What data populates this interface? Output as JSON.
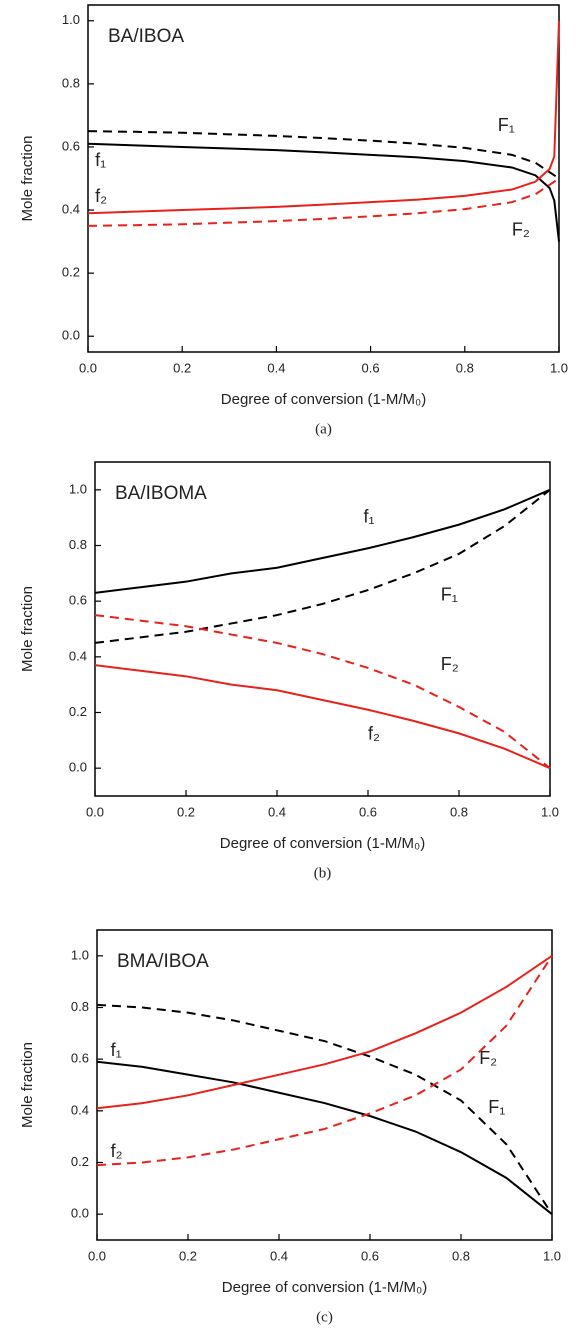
{
  "chart_data": [
    {
      "type": "line",
      "title": "BA/IBOA",
      "caption": "(a)",
      "x_label": "Degree of conversion (1-M/M₀)",
      "y_label": "Mole fraction",
      "x": [
        0,
        0.1,
        0.2,
        0.3,
        0.4,
        0.5,
        0.6,
        0.7,
        0.8,
        0.9,
        0.95,
        0.98,
        0.99,
        1.0
      ],
      "series": [
        {
          "name": "f₁",
          "color": "#000000",
          "dashed": false,
          "values": [
            0.61,
            0.605,
            0.6,
            0.595,
            0.59,
            0.583,
            0.575,
            0.567,
            0.555,
            0.535,
            0.51,
            0.47,
            0.43,
            0.3
          ]
        },
        {
          "name": "F₁",
          "color": "#000000",
          "dashed": true,
          "values": [
            0.65,
            0.648,
            0.645,
            0.64,
            0.635,
            0.628,
            0.62,
            0.61,
            0.597,
            0.575,
            0.55,
            0.52,
            0.51,
            0.5
          ]
        },
        {
          "name": "f₂",
          "color": "#e8211a",
          "dashed": false,
          "values": [
            0.39,
            0.395,
            0.4,
            0.405,
            0.41,
            0.417,
            0.425,
            0.433,
            0.445,
            0.465,
            0.49,
            0.53,
            0.57,
            1.0
          ]
        },
        {
          "name": "F₂",
          "color": "#e8211a",
          "dashed": true,
          "values": [
            0.35,
            0.352,
            0.355,
            0.36,
            0.365,
            0.372,
            0.38,
            0.39,
            0.403,
            0.425,
            0.45,
            0.48,
            0.49,
            0.5
          ]
        }
      ],
      "xlim": [
        0,
        1.0
      ],
      "ylim": [
        -0.05,
        1.05
      ],
      "xticks": [
        {
          "value": 0,
          "label": "0.0"
        },
        0.2,
        0.4,
        0.6,
        0.8,
        {
          "value": 1,
          "label": "1.0"
        }
      ],
      "yticks": [
        {
          "value": 0,
          "label": "0.0"
        },
        0.2,
        0.4,
        0.6,
        0.8,
        {
          "value": 1,
          "label": "1.0"
        }
      ]
    },
    {
      "type": "line",
      "title": "BA/IBOMA",
      "caption": "(b)",
      "x_label": "Degree of conversion (1-M/M₀)",
      "y_label": "Mole fraction",
      "x": [
        0,
        0.1,
        0.2,
        0.3,
        0.4,
        0.5,
        0.6,
        0.7,
        0.8,
        0.9,
        1.0
      ],
      "series": [
        {
          "name": "f₁",
          "color": "#000000",
          "dashed": false,
          "values": [
            0.63,
            0.65,
            0.67,
            0.7,
            0.72,
            0.755,
            0.79,
            0.83,
            0.875,
            0.93,
            1.0
          ]
        },
        {
          "name": "F₁",
          "color": "#000000",
          "dashed": true,
          "values": [
            0.45,
            0.47,
            0.49,
            0.52,
            0.55,
            0.59,
            0.64,
            0.7,
            0.77,
            0.87,
            1.0
          ]
        },
        {
          "name": "f₂",
          "color": "#e8211a",
          "dashed": false,
          "values": [
            0.37,
            0.35,
            0.33,
            0.3,
            0.28,
            0.245,
            0.21,
            0.17,
            0.125,
            0.07,
            0.0
          ]
        },
        {
          "name": "F₂",
          "color": "#e8211a",
          "dashed": true,
          "values": [
            0.55,
            0.53,
            0.51,
            0.48,
            0.45,
            0.41,
            0.36,
            0.3,
            0.22,
            0.13,
            0.0
          ]
        }
      ],
      "xlim": [
        0,
        1.0
      ],
      "ylim": [
        -0.1,
        1.1
      ],
      "xticks": [
        {
          "value": 0,
          "label": "0.0"
        },
        0.2,
        0.4,
        0.6,
        0.8,
        {
          "value": 1,
          "label": "1.0"
        }
      ],
      "yticks": [
        {
          "value": 0,
          "label": "0.0"
        },
        0.2,
        0.4,
        0.6,
        0.8,
        {
          "value": 1,
          "label": "1.0"
        }
      ]
    },
    {
      "type": "line",
      "title": "BMA/IBOA",
      "caption": "(c)",
      "x_label": "Degree of conversion (1-M/M₀)",
      "y_label": "Mole fraction",
      "x": [
        0,
        0.1,
        0.2,
        0.3,
        0.4,
        0.5,
        0.6,
        0.7,
        0.8,
        0.9,
        1.0
      ],
      "series": [
        {
          "name": "f₁",
          "color": "#000000",
          "dashed": false,
          "values": [
            0.59,
            0.57,
            0.54,
            0.51,
            0.47,
            0.43,
            0.38,
            0.32,
            0.24,
            0.14,
            0.0
          ]
        },
        {
          "name": "F₁",
          "color": "#000000",
          "dashed": true,
          "values": [
            0.81,
            0.8,
            0.78,
            0.75,
            0.71,
            0.67,
            0.61,
            0.54,
            0.44,
            0.27,
            0.0
          ]
        },
        {
          "name": "f₂",
          "color": "#e8211a",
          "dashed": false,
          "values": [
            0.41,
            0.43,
            0.46,
            0.5,
            0.54,
            0.58,
            0.63,
            0.7,
            0.78,
            0.88,
            1.0
          ]
        },
        {
          "name": "F₂",
          "color": "#e8211a",
          "dashed": true,
          "values": [
            0.19,
            0.2,
            0.22,
            0.25,
            0.29,
            0.33,
            0.39,
            0.46,
            0.56,
            0.73,
            1.0
          ]
        }
      ],
      "xlim": [
        0,
        1.0
      ],
      "ylim": [
        -0.1,
        1.1
      ],
      "xticks": [
        {
          "value": 0,
          "label": "0.0"
        },
        0.2,
        0.4,
        0.6,
        0.8,
        {
          "value": 1,
          "label": "1.0"
        }
      ],
      "yticks": [
        {
          "value": 0,
          "label": "0.0"
        },
        0.2,
        0.4,
        0.6,
        0.8,
        {
          "value": 1,
          "label": "1.0"
        }
      ]
    }
  ]
}
